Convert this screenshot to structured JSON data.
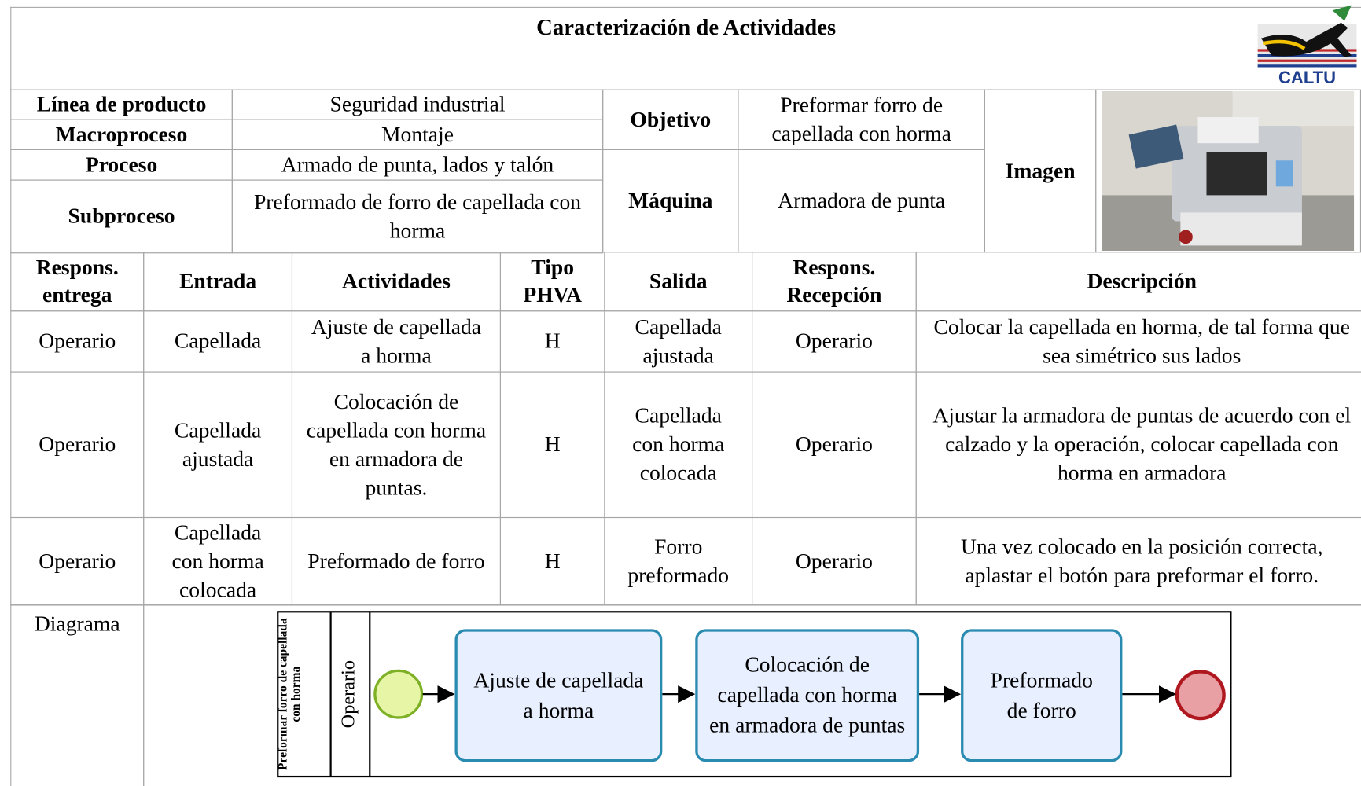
{
  "header": {
    "title": "Caracterización de Actividades",
    "logo_text": "CALTU"
  },
  "info": {
    "rows": [
      [
        "Línea de producto",
        "Seguridad industrial"
      ],
      [
        "Macroproceso",
        "Montaje"
      ],
      [
        "Proceso",
        "Armado de punta, lados y talón"
      ],
      [
        "Subproceso",
        "Preformado de forro de capellada con horma"
      ]
    ],
    "objetivo_label": "Objetivo",
    "objetivo": "Preformar forro de capellada con horma",
    "maquina_label": "Máquina",
    "maquina": "Armadora de punta",
    "imagen_label": "Imagen"
  },
  "table": {
    "columns": [
      "Respons. entrega",
      "Entrada",
      "Actividades",
      "Tipo PHVA",
      "Salida",
      "Respons. Recepción",
      "Descripción"
    ],
    "rows": [
      [
        "Operario",
        "Capellada",
        "Ajuste de capellada a horma",
        "H",
        "Capellada ajustada",
        "Operario",
        "Colocar la capellada en horma, de tal forma que sea simétrico sus lados"
      ],
      [
        "Operario",
        "Capellada ajustada",
        "Colocación de capellada con horma en armadora de puntas.",
        "H",
        "Capellada con horma colocada",
        "Operario",
        "Ajustar la armadora de puntas de acuerdo con el calzado y la operación, colocar capellada con horma en armadora"
      ],
      [
        "Operario",
        "Capellada con horma colocada",
        "Preformado de forro",
        "H",
        "Forro preformado",
        "Operario",
        "Una vez colocado en la posición correcta, aplastar el botón para preformar el forro."
      ]
    ]
  },
  "diagram": {
    "label": "Diagrama",
    "pool": "Preformar forro de capellada con horma",
    "lane": "Operario",
    "tasks": [
      "Ajuste de capellada a horma",
      "Colocación de capellada con horma en armadora de puntas",
      "Preformado de forro"
    ]
  }
}
